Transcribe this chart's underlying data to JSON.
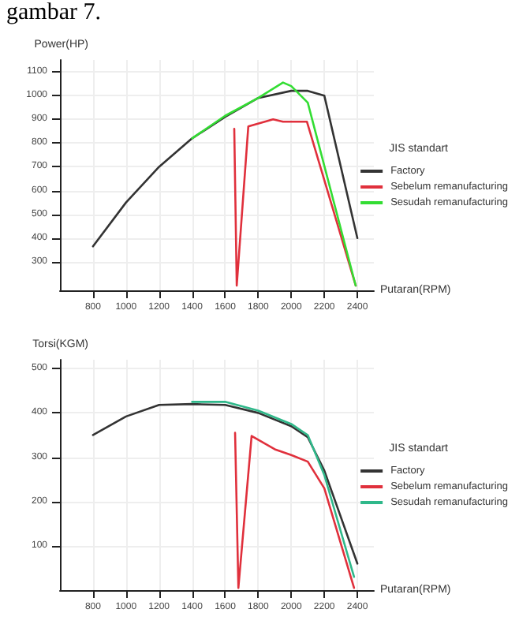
{
  "chart_data": [
    {
      "type": "line",
      "annotations": [
        "gambar 7."
      ],
      "ylabel": "Power(HP)",
      "xlabel": "Putaran(RPM)",
      "legend_title": "JIS standart",
      "legend": "right",
      "grid": true,
      "marker": "none",
      "line_style": "solid",
      "xlim": [
        600,
        2500
      ],
      "xticks": [
        800,
        1000,
        1200,
        1400,
        1600,
        1800,
        2000,
        2200,
        2400
      ],
      "ylim": [
        180,
        1150
      ],
      "yticks": [
        300,
        400,
        500,
        600,
        700,
        800,
        900,
        1000,
        1100
      ],
      "series": [
        {
          "name": "Factory",
          "color": "#333333",
          "x": [
            800,
            1000,
            1200,
            1400,
            1600,
            1800,
            2000,
            2100,
            2200,
            2400
          ],
          "values": [
            365,
            550,
            700,
            820,
            910,
            990,
            1020,
            1020,
            1000,
            400
          ]
        },
        {
          "name": "Sebelum remanufacturing",
          "color": "#e0303c",
          "x": [
            1655,
            1670,
            1740,
            1890,
            1950,
            2095,
            2390
          ],
          "values": [
            860,
            200,
            870,
            900,
            890,
            890,
            200
          ]
        },
        {
          "name": "Sesudah remanufacturing",
          "color": "#33dd33",
          "x": [
            1400,
            1600,
            1800,
            1950,
            2000,
            2100,
            2390
          ],
          "values": [
            820,
            915,
            990,
            1055,
            1040,
            970,
            200
          ]
        }
      ]
    },
    {
      "type": "line",
      "ylabel": "Torsi(KGM)",
      "xlabel": "Putaran(RPM)",
      "legend_title": "JIS standart",
      "legend": "right",
      "grid": true,
      "marker": "none",
      "line_style": "solid",
      "xlim": [
        600,
        2500
      ],
      "xticks": [
        800,
        1000,
        1200,
        1400,
        1600,
        1800,
        2000,
        2200,
        2400
      ],
      "ylim": [
        0,
        520
      ],
      "yticks": [
        100,
        200,
        300,
        400,
        500
      ],
      "series": [
        {
          "name": "Factory",
          "color": "#333333",
          "x": [
            800,
            1000,
            1200,
            1400,
            1600,
            1800,
            2000,
            2100,
            2200,
            2400
          ],
          "values": [
            350,
            392,
            418,
            420,
            418,
            400,
            370,
            345,
            270,
            60
          ]
        },
        {
          "name": "Sebelum remanufacturing",
          "color": "#e0303c",
          "x": [
            1660,
            1680,
            1760,
            1900,
            2000,
            2100,
            2200,
            2380
          ],
          "values": [
            355,
            5,
            348,
            318,
            305,
            290,
            230,
            5
          ]
        },
        {
          "name": "Sesudah remanufacturing",
          "color": "#2fb88a",
          "x": [
            1400,
            1600,
            1800,
            2000,
            2100,
            2200,
            2380
          ],
          "values": [
            425,
            425,
            405,
            375,
            350,
            260,
            30
          ]
        }
      ]
    }
  ]
}
